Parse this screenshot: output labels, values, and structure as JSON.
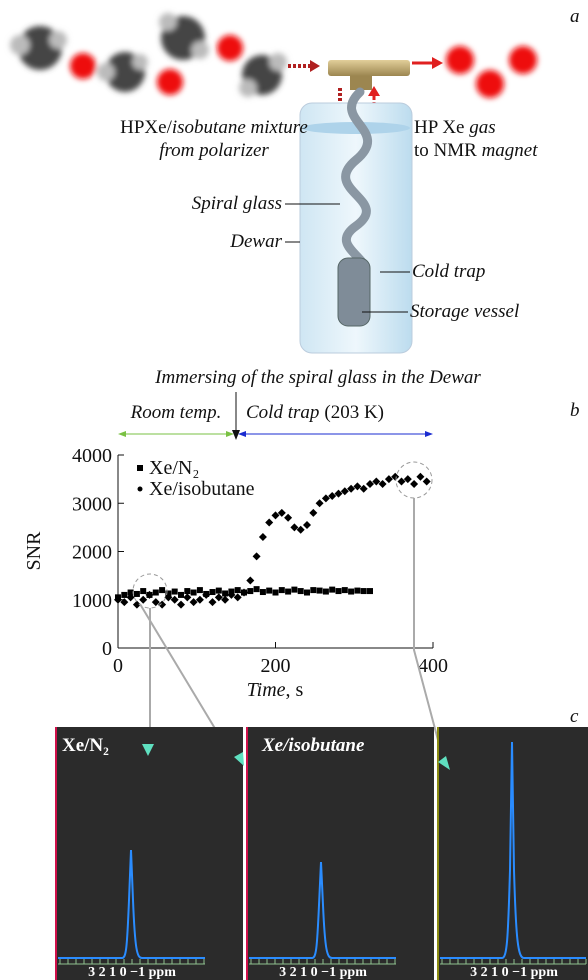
{
  "panel_labels": [
    "a",
    "b",
    "c"
  ],
  "diagram": {
    "inlet_label": [
      "HPXe/",
      "isobutane mixture",
      "from polarizer"
    ],
    "outlet_label": [
      "HP Xe ",
      "gas",
      "to NMR ",
      "magnet"
    ],
    "labels": [
      "Spiral glass",
      "Dewar",
      "Cold trap",
      "Storage vessel"
    ],
    "caption": "Immersing of the spiral glass in the Dewar"
  },
  "chart_data": {
    "type": "scatter",
    "regions": [
      "Room temp.",
      "Cold trap",
      "(203 K)"
    ],
    "xlabel": [
      "Time",
      ", s"
    ],
    "ylabel": "SNR",
    "xlim": [
      0,
      400
    ],
    "ylim": [
      0,
      4000
    ],
    "xticks": [
      0,
      200,
      400
    ],
    "yticks": [
      0,
      1000,
      2000,
      3000,
      4000
    ],
    "series": [
      {
        "name": "Xe/N₂",
        "marker": "square",
        "color": "#000000",
        "x": [
          0,
          8,
          16,
          24,
          32,
          40,
          48,
          56,
          64,
          72,
          80,
          88,
          96,
          104,
          112,
          120,
          128,
          136,
          144,
          152,
          160,
          168,
          176,
          184,
          192,
          200,
          208,
          216,
          224,
          232,
          240,
          248,
          256,
          264,
          272,
          280,
          288,
          296,
          304,
          312,
          320
        ],
        "values": [
          1050,
          1100,
          1150,
          1120,
          1180,
          1100,
          1150,
          1200,
          1130,
          1170,
          1100,
          1180,
          1150,
          1200,
          1120,
          1160,
          1190,
          1130,
          1170,
          1200,
          1150,
          1180,
          1220,
          1160,
          1190,
          1150,
          1200,
          1170,
          1210,
          1180,
          1150,
          1200,
          1190,
          1170,
          1210,
          1180,
          1200,
          1170,
          1190,
          1180,
          1180
        ]
      },
      {
        "name": "Xe/isobutane",
        "marker": "diamond",
        "color": "#000000",
        "x": [
          0,
          8,
          16,
          24,
          32,
          40,
          48,
          56,
          64,
          72,
          80,
          88,
          96,
          104,
          112,
          120,
          128,
          136,
          144,
          152,
          160,
          168,
          176,
          184,
          192,
          200,
          208,
          216,
          224,
          232,
          240,
          248,
          256,
          264,
          272,
          280,
          288,
          296,
          304,
          312,
          320,
          328,
          336,
          344,
          352,
          360,
          368,
          376,
          384,
          392
        ],
        "values": [
          1000,
          950,
          1050,
          900,
          1000,
          1100,
          950,
          900,
          1050,
          1000,
          900,
          1050,
          950,
          1000,
          1100,
          950,
          1050,
          1000,
          1100,
          1050,
          1150,
          1400,
          1900,
          2300,
          2600,
          2750,
          2800,
          2700,
          2500,
          2450,
          2550,
          2800,
          3000,
          3100,
          3150,
          3200,
          3250,
          3300,
          3350,
          3300,
          3400,
          3450,
          3400,
          3500,
          3550,
          3450,
          3500,
          3400,
          3550,
          3450
        ]
      }
    ]
  },
  "spectra": {
    "titles": [
      "Xe/N₂",
      "Xe/isobutane"
    ],
    "axis_labels": [
      "3 2 1 0 −1 ppm",
      "3 2 1 0 −1 ppm",
      "3 2 1 0 −1 ppm"
    ]
  }
}
